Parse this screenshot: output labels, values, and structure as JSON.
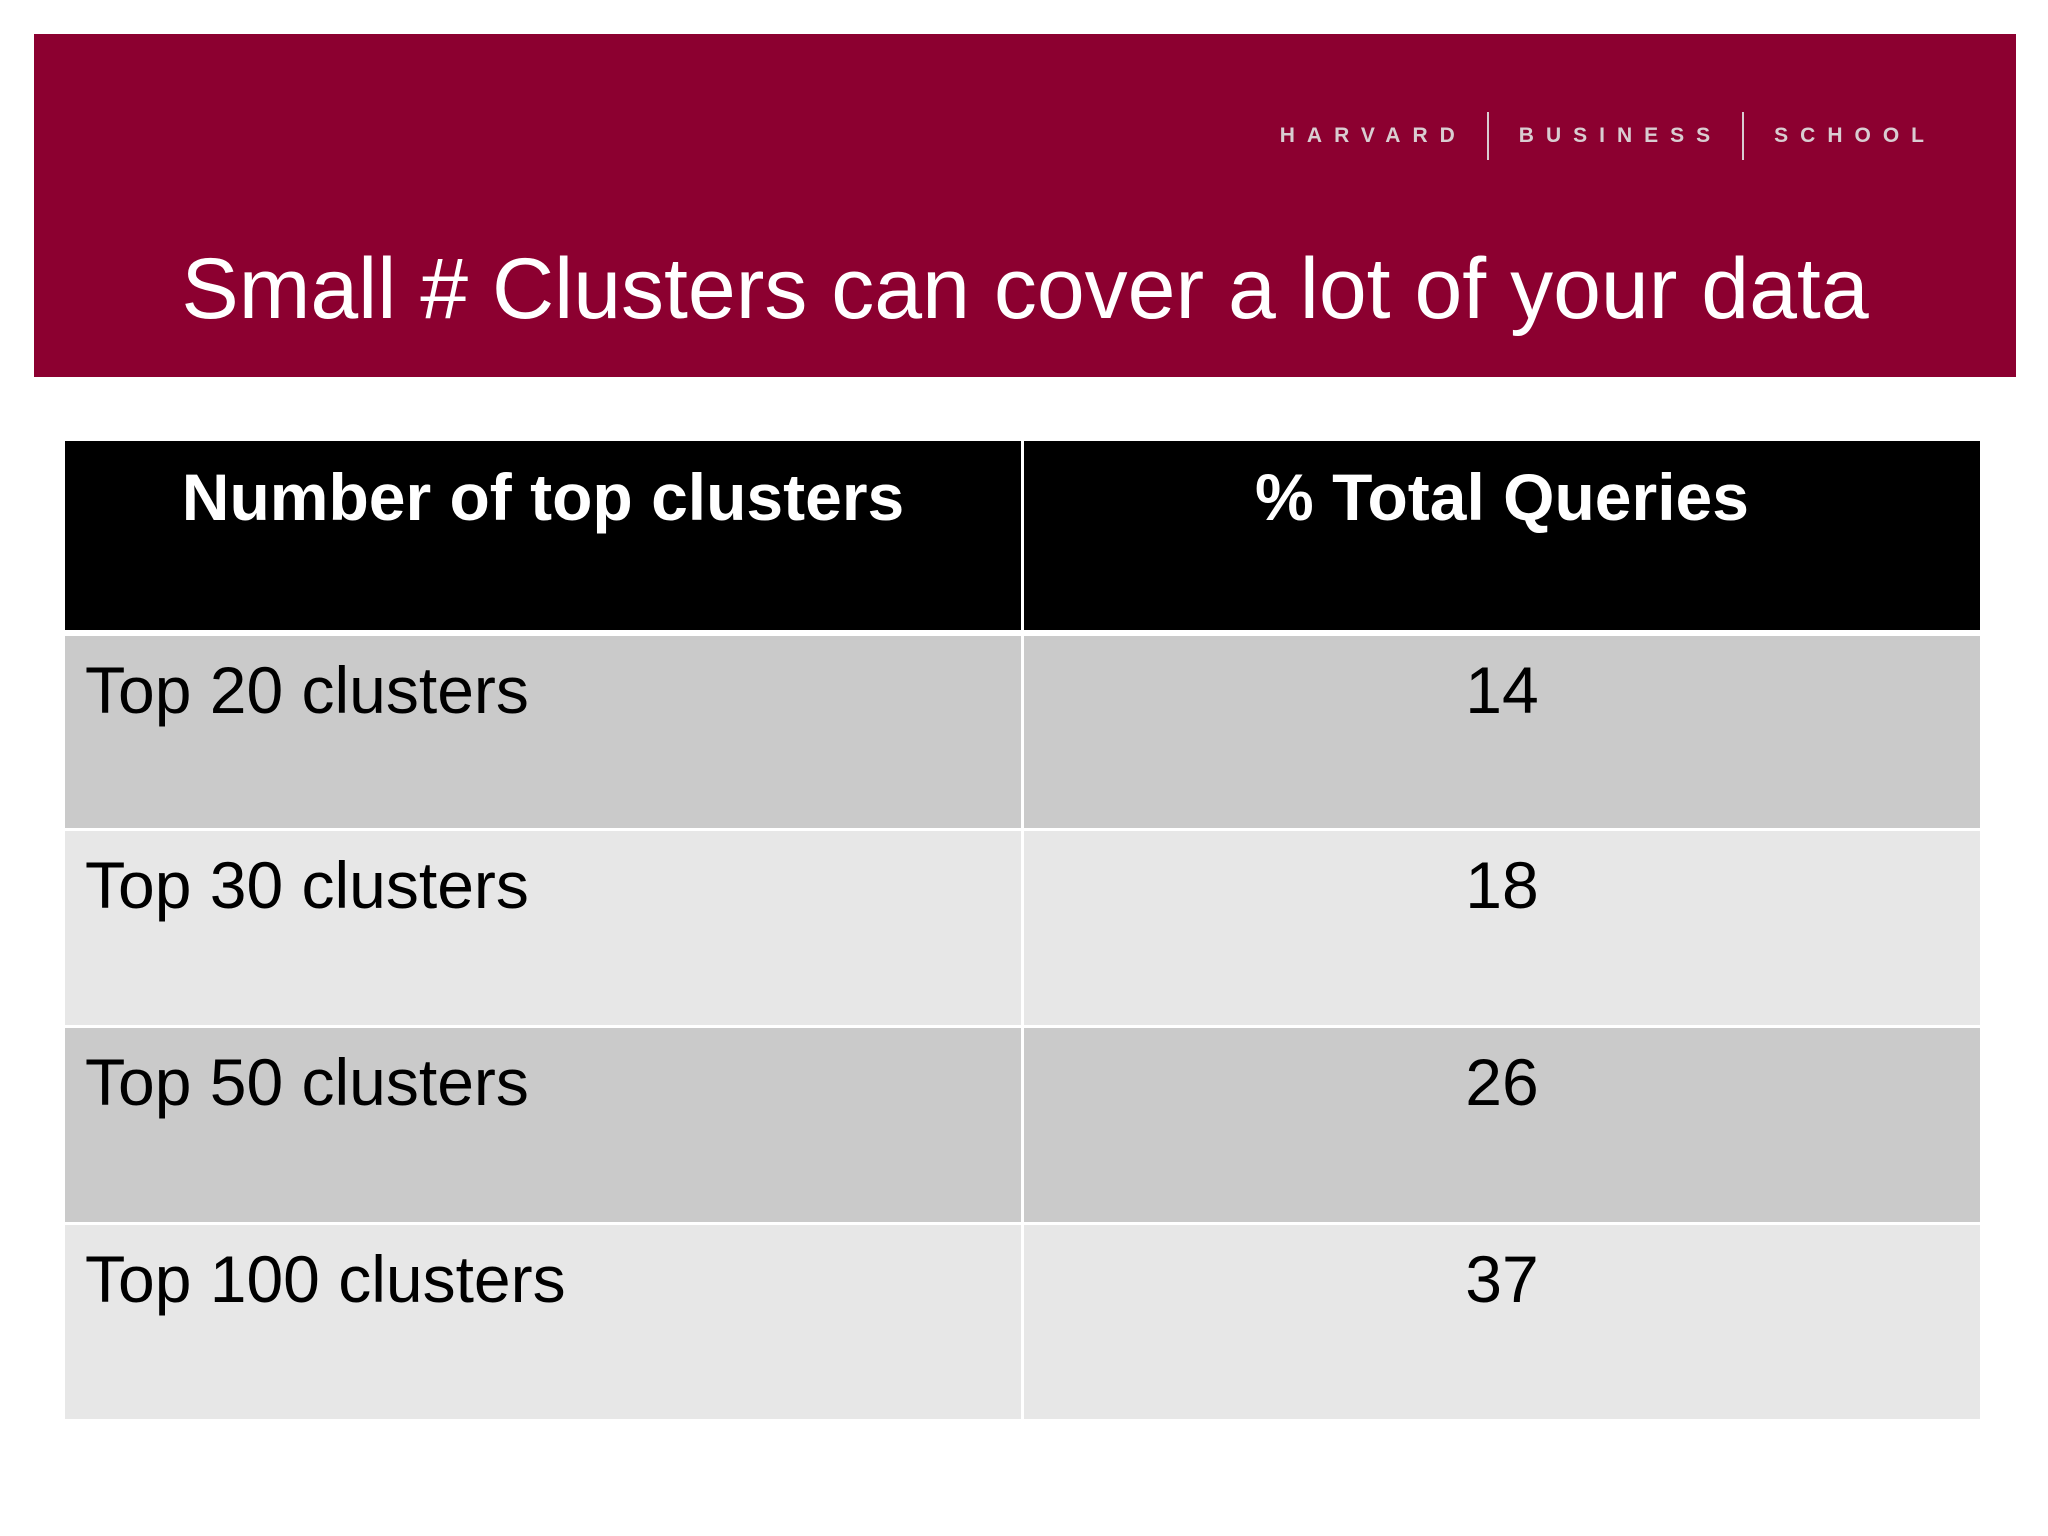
{
  "logo": {
    "words": [
      "HARVARD",
      "BUSINESS",
      "SCHOOL"
    ]
  },
  "slide": {
    "title": "Small # Clusters can cover a lot of your data"
  },
  "table": {
    "headers": [
      "Number of top clusters",
      "% Total Queries"
    ],
    "rows": [
      {
        "label": "Top 20 clusters",
        "value": "14"
      },
      {
        "label": "Top 30 clusters",
        "value": "18"
      },
      {
        "label": "Top 50 clusters",
        "value": "26"
      },
      {
        "label": "Top 100 clusters",
        "value": "37"
      }
    ]
  },
  "colors": {
    "banner": "#8c0030",
    "header_bg": "#000000",
    "row_dark": "#cacaca",
    "row_light": "#e7e7e7"
  }
}
